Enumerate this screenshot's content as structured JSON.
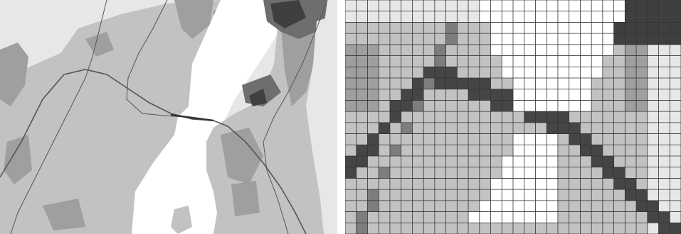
{
  "figure": {
    "panels": [
      {
        "id": "left",
        "kind": "vector-map"
      },
      {
        "id": "right",
        "kind": "rasterized-grid-map",
        "grid": {
          "columns": 30,
          "rows": 21
        }
      }
    ]
  },
  "colors": {
    "background": "#ffffff",
    "water": "#ffffff",
    "land_light": "#e7e7e7",
    "land_medium": "#c2c2c2",
    "land_dark": "#9f9f9f",
    "urban_dark": "#6e6e6e",
    "urban_darkest": "#3f3f3f",
    "rail": "#555555",
    "grid_line": "#333333",
    "raster_rail_cell": "#454545",
    "raster_edge_cell": "#7d7d7d"
  },
  "legend": []
}
